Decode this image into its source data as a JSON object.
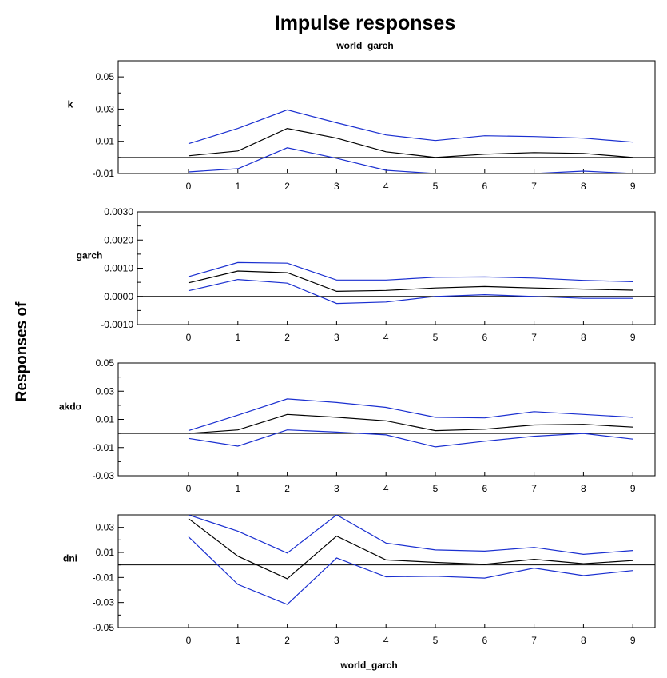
{
  "chart_data": {
    "type": "line",
    "title": "Impulse responses",
    "subtitle": "world_garch",
    "ylabel": "Responses of",
    "xlabel": "world_garch",
    "x": [
      0,
      1,
      2,
      3,
      4,
      5,
      6,
      7,
      8,
      9
    ],
    "x_ticks": [
      "0",
      "1",
      "2",
      "3",
      "4",
      "5",
      "6",
      "7",
      "8",
      "9"
    ],
    "colors": {
      "response": "#000000",
      "bands": "#1a2fd0",
      "axis": "#000000"
    },
    "panels": [
      {
        "label": "k",
        "ylim": [
          -0.01,
          0.06
        ],
        "yticks": [
          "0.05",
          "0.03",
          "0.01",
          "-0.01"
        ],
        "ytick_values": [
          0.05,
          0.03,
          0.01,
          -0.01
        ],
        "series": [
          {
            "values": [
              0.001,
              0.004,
              0.018,
              0.012,
              0.0035,
              0.0,
              0.002,
              0.003,
              0.0025,
              0.0
            ]
          },
          {
            "values": [
              0.0085,
              0.018,
              0.0295,
              0.0215,
              0.014,
              0.0105,
              0.0135,
              0.013,
              0.012,
              0.0095
            ]
          },
          {
            "values": [
              -0.009,
              -0.007,
              0.006,
              -0.0005,
              -0.008,
              -0.01,
              -0.0098,
              -0.01,
              -0.0085,
              -0.01
            ]
          }
        ]
      },
      {
        "label": "garch",
        "ylim": [
          -0.001,
          0.003
        ],
        "yticks": [
          "0.0030",
          "0.0020",
          "0.0010",
          "0.0000",
          "-0.0010"
        ],
        "ytick_values": [
          0.003,
          0.002,
          0.001,
          0.0,
          -0.001
        ],
        "series": [
          {
            "values": [
              0.00048,
              0.0009,
              0.00084,
              0.00018,
              0.00021,
              0.0003,
              0.00035,
              0.0003,
              0.00026,
              0.00022
            ]
          },
          {
            "values": [
              0.0007,
              0.0012,
              0.00118,
              0.00058,
              0.00058,
              0.00068,
              0.00069,
              0.00065,
              0.00057,
              0.00052
            ]
          },
          {
            "values": [
              0.0002,
              0.0006,
              0.00047,
              -0.00025,
              -0.0002,
              0.0,
              6e-05,
              0.0,
              -7e-05,
              -7e-05
            ]
          }
        ]
      },
      {
        "label": "akdo",
        "ylim": [
          -0.03,
          0.05
        ],
        "yticks": [
          "0.05",
          "0.03",
          "0.01",
          "-0.01",
          "-0.03"
        ],
        "ytick_values": [
          0.05,
          0.03,
          0.01,
          -0.01,
          -0.03
        ],
        "series": [
          {
            "values": [
              0.0,
              0.0025,
              0.0135,
              0.0115,
              0.009,
              0.002,
              0.003,
              0.006,
              0.0065,
              0.0045
            ]
          },
          {
            "values": [
              0.002,
              0.013,
              0.0245,
              0.022,
              0.0185,
              0.0115,
              0.011,
              0.0155,
              0.0135,
              0.0115
            ]
          },
          {
            "values": [
              -0.0035,
              -0.009,
              0.0025,
              0.001,
              -0.001,
              -0.0095,
              -0.0055,
              -0.002,
              0.0,
              -0.004
            ]
          }
        ]
      },
      {
        "label": "dni",
        "ylim": [
          -0.05,
          0.04
        ],
        "yticks": [
          "0.03",
          "0.01",
          "-0.01",
          "-0.03",
          "-0.05"
        ],
        "ytick_values": [
          0.03,
          0.01,
          -0.01,
          -0.03,
          -0.05
        ],
        "series": [
          {
            "values": [
              0.037,
              0.007,
              -0.011,
              0.023,
              0.004,
              0.002,
              0.0005,
              0.0045,
              0.001,
              0.0035
            ]
          },
          {
            "values": [
              0.04,
              0.027,
              0.0095,
              0.04,
              0.0175,
              0.012,
              0.011,
              0.014,
              0.0085,
              0.0115
            ]
          },
          {
            "values": [
              0.0225,
              -0.0155,
              -0.0315,
              0.0055,
              -0.0095,
              -0.009,
              -0.0105,
              -0.0025,
              -0.0085,
              -0.0045
            ]
          }
        ]
      }
    ]
  }
}
